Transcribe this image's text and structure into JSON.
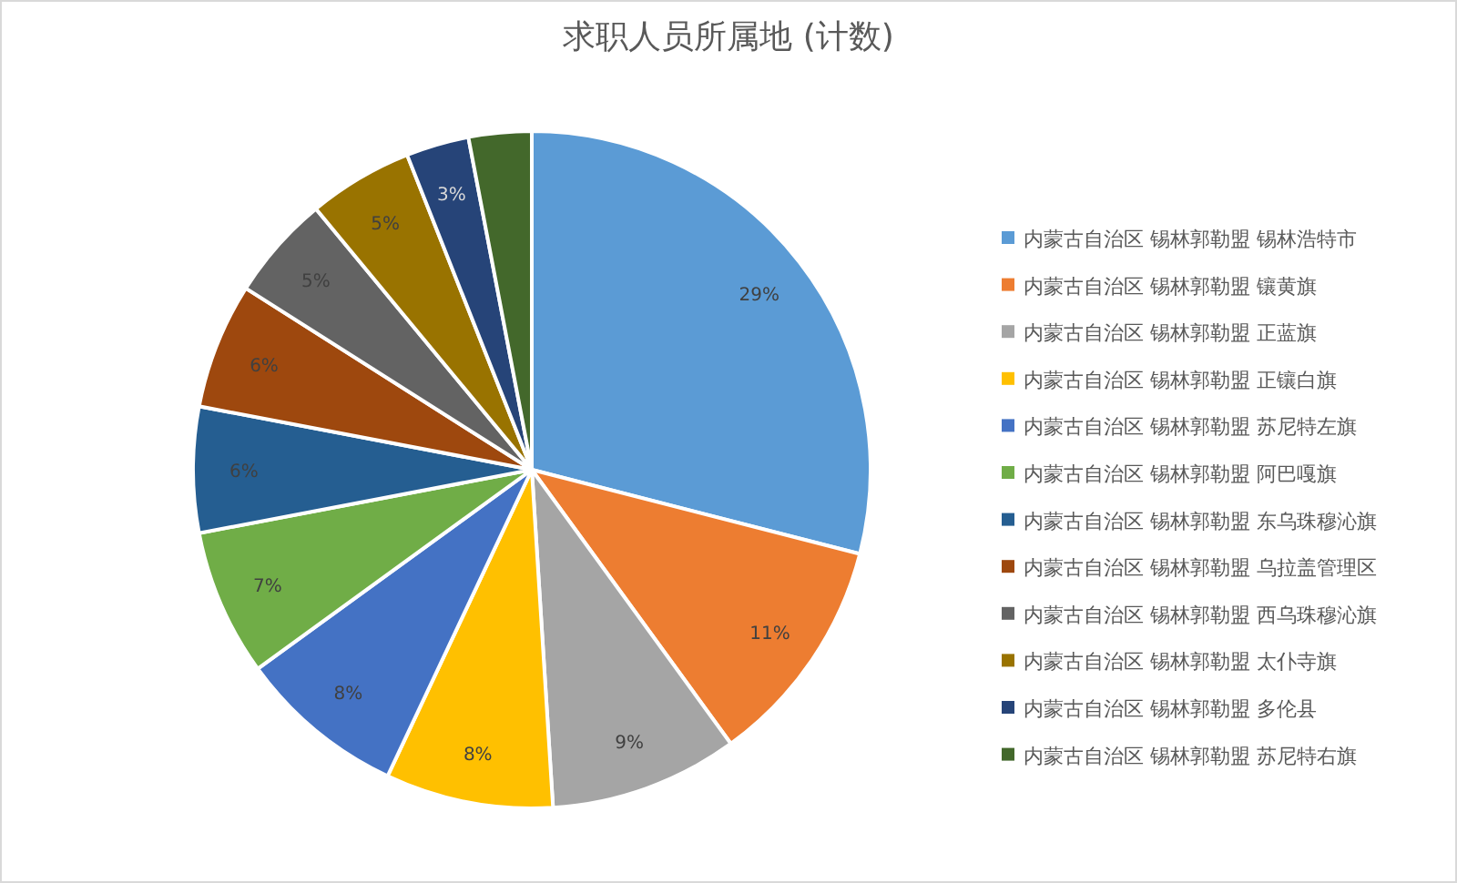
{
  "chart_data": {
    "type": "pie",
    "title": "求职人员所属地 (计数)",
    "categories": [
      "内蒙古自治区 锡林郭勒盟 锡林浩特市",
      "内蒙古自治区 锡林郭勒盟 镶黄旗",
      "内蒙古自治区 锡林郭勒盟 正蓝旗",
      "内蒙古自治区 锡林郭勒盟 正镶白旗",
      "内蒙古自治区 锡林郭勒盟 苏尼特左旗",
      "内蒙古自治区 锡林郭勒盟 阿巴嘎旗",
      "内蒙古自治区 锡林郭勒盟 东乌珠穆沁旗",
      "内蒙古自治区 锡林郭勒盟 乌拉盖管理区",
      "内蒙古自治区 锡林郭勒盟 西乌珠穆沁旗",
      "内蒙古自治区 锡林郭勒盟 太仆寺旗",
      "内蒙古自治区 锡林郭勒盟 多伦县",
      "内蒙古自治区 锡林郭勒盟 苏尼特右旗"
    ],
    "values": [
      29,
      11,
      9,
      8,
      8,
      7,
      6,
      6,
      5,
      5,
      3,
      3
    ],
    "value_labels": [
      "29%",
      "11%",
      "9%",
      "8%",
      "8%",
      "7%",
      "6%",
      "6%",
      "5%",
      "5%",
      "3%",
      null
    ],
    "colors": [
      "#5b9bd5",
      "#ed7d31",
      "#a5a5a5",
      "#ffc000",
      "#4472c4",
      "#70ad47",
      "#255e91",
      "#9e480e",
      "#636363",
      "#997300",
      "#264478",
      "#43682b"
    ],
    "legend": "right"
  }
}
